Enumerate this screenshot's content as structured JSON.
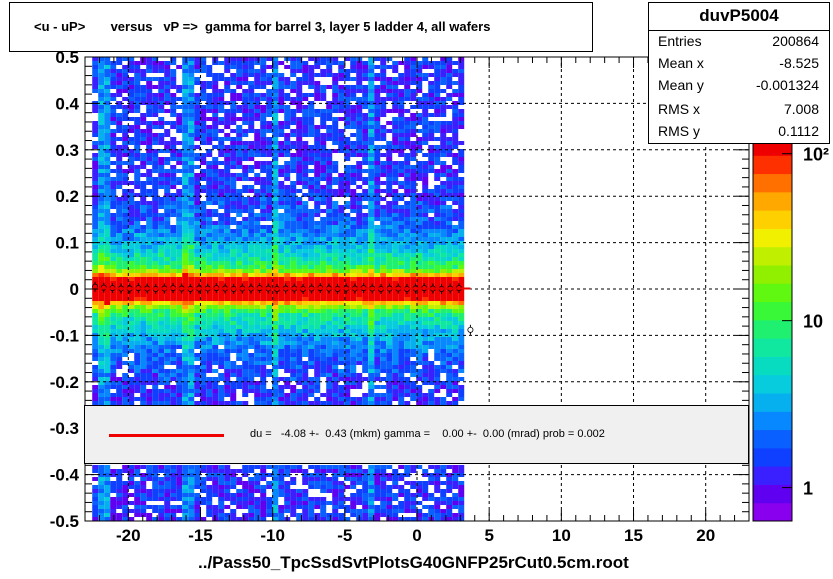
{
  "title": "<u - uP>       versus   vP =>  gamma for barrel 3, layer 5 ladder 4, all wafers",
  "stats": {
    "name": "duvP5004",
    "rows": [
      {
        "key": "Entries",
        "value": "200864"
      },
      {
        "key": "Mean x",
        "value": "-8.525"
      },
      {
        "key": "Mean y",
        "value": "-0.001324"
      },
      {
        "key": "RMS x",
        "value": "7.008"
      },
      {
        "key": "RMS y",
        "value": "0.1112"
      }
    ]
  },
  "fit": {
    "text": "du =   -4.08 +-  0.43 (mkm) gamma =    0.00 +-  0.00 (mrad) prob = 0.002",
    "line_color": "#ee0000"
  },
  "colors": {
    "frame": "#000000",
    "grid": "#000000",
    "profile_marker": "#ff0000",
    "palette": [
      "#8800ee",
      "#6000f0",
      "#3b20ff",
      "#1040ff",
      "#0a60ff",
      "#0888ff",
      "#06b0ee",
      "#06ccdd",
      "#08dcc0",
      "#10e8a0",
      "#20f070",
      "#38f838",
      "#60f810",
      "#90f000",
      "#c0f000",
      "#f0f000",
      "#ffd000",
      "#ffa800",
      "#ff7000",
      "#ff3000",
      "#ee0000"
    ]
  },
  "chart_data": {
    "type": "heatmap",
    "title": "<u - uP>       versus   vP =>  gamma for barrel 3, layer 5 ladder 4, all wafers",
    "xlabel": "../Pass50_TpcSsdSvtPlotsG40GNFP25rCut0.5cm.root",
    "ylabel": "",
    "xlim": [
      -23,
      23
    ],
    "ylim": [
      -0.5,
      0.5
    ],
    "x_ticks": [
      -20,
      -15,
      -10,
      -5,
      0,
      5,
      10,
      15,
      20
    ],
    "x_tick_labels": [
      "-20",
      "-15",
      "-10",
      "-5",
      "0",
      "5",
      "10",
      "15",
      "20"
    ],
    "y_ticks": [
      0.5,
      0.4,
      0.3,
      0.2,
      0.1,
      0,
      -0.1,
      -0.2,
      -0.3,
      -0.4,
      -0.5
    ],
    "y_tick_labels": [
      "0.5",
      "0.4",
      "0.3",
      "0.2",
      "0.1",
      "0",
      "-0.1",
      "-0.2",
      "-0.3",
      "-0.4",
      "-0.5"
    ],
    "grid": true,
    "colorbar": {
      "scale": "log",
      "tick_labels": [
        "1",
        "10",
        "10²"
      ],
      "tick_values": [
        1,
        10,
        100
      ]
    },
    "data_region": {
      "x_min": -22.5,
      "x_max": 3.2,
      "y_min": -0.5,
      "y_max": 0.5
    },
    "band_center_y": 0.0,
    "band_sigma_y": 0.1112,
    "profile": {
      "x": [
        -22.3,
        -21.7,
        -21.1,
        -20.5,
        -19.9,
        -19.3,
        -18.7,
        -18.1,
        -17.5,
        -16.9,
        -16.3,
        -15.7,
        -15.1,
        -14.5,
        -13.9,
        -13.3,
        -12.7,
        -12.1,
        -11.5,
        -10.9,
        -10.3,
        -9.7,
        -9.1,
        -8.5,
        -7.9,
        -7.3,
        -6.7,
        -6.1,
        -5.5,
        -4.9,
        -4.3,
        -3.7,
        -3.1,
        -2.5,
        -1.9,
        -1.3,
        -0.7,
        -0.1,
        0.5,
        1.1,
        1.7,
        2.3,
        2.9,
        3.7
      ],
      "y": [
        0.005,
        0.003,
        0.002,
        0.001,
        0.001,
        0.002,
        0.001,
        0.0,
        0.001,
        0.002,
        0.001,
        0.0,
        0.001,
        0.001,
        0.002,
        0.001,
        0.0,
        0.001,
        0.001,
        0.002,
        0.001,
        0.0,
        0.001,
        0.001,
        0.0,
        0.001,
        0.002,
        0.001,
        0.0,
        0.001,
        0.001,
        0.002,
        0.001,
        0.0,
        0.001,
        0.001,
        0.0,
        0.001,
        0.002,
        0.001,
        0.0,
        0.001,
        0.002,
        -0.088
      ]
    },
    "fit_line": {
      "x": [
        -22.5,
        3.7
      ],
      "y": [
        0.001,
        0.001
      ]
    }
  }
}
